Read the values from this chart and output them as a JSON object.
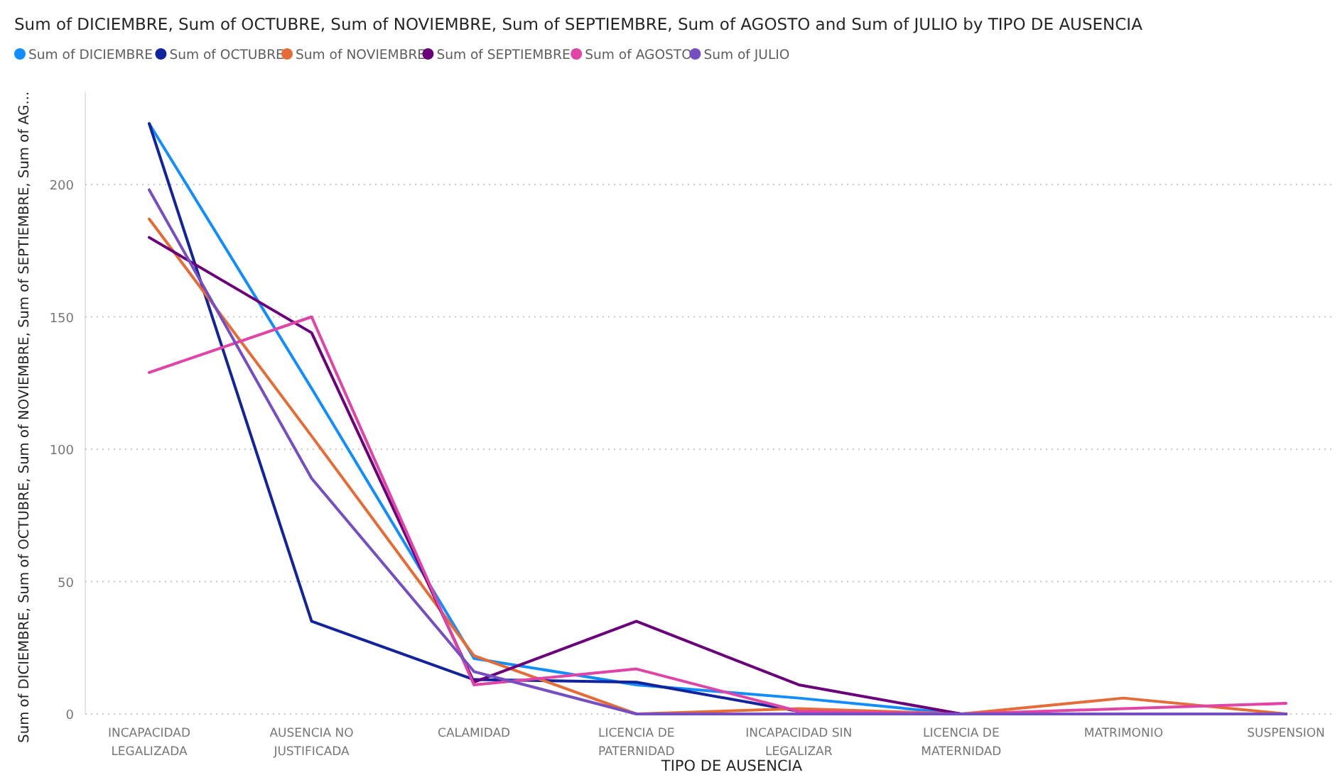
{
  "chart_data": {
    "type": "line",
    "title": "Sum of DICIEMBRE, Sum of OCTUBRE, Sum of NOVIEMBRE, Sum of SEPTIEMBRE, Sum of AGOSTO and Sum of JULIO by TIPO DE AUSENCIA",
    "xlabel": "TIPO DE AUSENCIA",
    "ylabel": "Sum of DICIEMBRE, Sum of OCTUBRE, Sum of NOVIEMBRE, Sum of SEPTIEMBRE, Sum of AG...",
    "categories": [
      "INCAPACIDAD LEGALIZADA",
      "AUSENCIA NO JUSTIFICADA",
      "CALAMIDAD",
      "LICENCIA DE PATERNIDAD",
      "INCAPACIDAD SIN LEGALIZAR",
      "LICENCIA DE MATERNIDAD",
      "MATRIMONIO",
      "SUSPENSION"
    ],
    "series": [
      {
        "name": "Sum of DICIEMBRE",
        "color": "#118dff",
        "values": [
          223,
          123,
          21,
          11,
          6,
          0,
          0,
          0
        ]
      },
      {
        "name": "Sum of OCTUBRE",
        "color": "#12239e",
        "values": [
          223,
          35,
          13,
          12,
          1,
          0,
          0,
          0
        ]
      },
      {
        "name": "Sum of NOVIEMBRE",
        "color": "#e66c37",
        "values": [
          187,
          105,
          22,
          0,
          2,
          0,
          6,
          0
        ]
      },
      {
        "name": "Sum of SEPTIEMBRE",
        "color": "#6b007b",
        "values": [
          180,
          144,
          12,
          35,
          11,
          0,
          0,
          0
        ]
      },
      {
        "name": "Sum of AGOSTO",
        "color": "#e044a7",
        "values": [
          129,
          150,
          11,
          17,
          1,
          0,
          2,
          4
        ]
      },
      {
        "name": "Sum of JULIO",
        "color": "#744ec2",
        "values": [
          198,
          89,
          16,
          0,
          0,
          0,
          0,
          0
        ]
      }
    ],
    "ylim": [
      0,
      235
    ],
    "yticks": [
      0,
      50,
      100,
      150,
      200
    ],
    "grid": "y",
    "legend": "top left",
    "line_style": "solid"
  }
}
